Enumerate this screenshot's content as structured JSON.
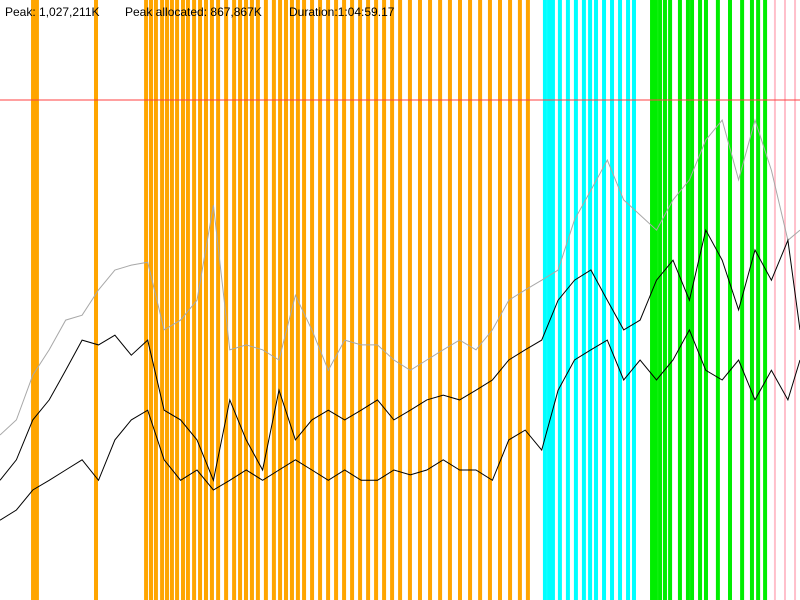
{
  "chart_data": {
    "type": "line",
    "peak": 1027211,
    "peak_label": "Peak: 1,027,211K",
    "peak_allocated": 867867,
    "peak_allocated_label": "Peak allocated: 867,867K",
    "duration_label": "Duration:1:04:59.17",
    "peak_color": "#ff4040",
    "xlim": [
      0,
      3899.17
    ],
    "ylim": [
      0,
      1232653
    ],
    "x": [
      0,
      80,
      160,
      240,
      320,
      400,
      480,
      560,
      640,
      720,
      800,
      880,
      960,
      1040,
      1120,
      1200,
      1280,
      1360,
      1440,
      1520,
      1600,
      1680,
      1760,
      1840,
      1920,
      2000,
      2080,
      2160,
      2240,
      2320,
      2400,
      2480,
      2560,
      2640,
      2720,
      2800,
      2880,
      2960,
      3040,
      3120,
      3200,
      3280,
      3360,
      3440,
      3520,
      3600,
      3680,
      3760,
      3840,
      3899.17
    ],
    "series": [
      {
        "color": "#a8a8a8",
        "values": [
          339000,
          370000,
          462000,
          514000,
          575000,
          585000,
          637000,
          678000,
          688000,
          694000,
          555000,
          575000,
          616000,
          811000,
          514000,
          524000,
          514000,
          493000,
          626000,
          555000,
          472000,
          534000,
          524000,
          524000,
          493000,
          472000,
          493000,
          514000,
          534000,
          514000,
          555000,
          616000,
          637000,
          657000,
          678000,
          781000,
          842000,
          904000,
          822000,
          791000,
          760000,
          822000,
          863000,
          945000,
          986000,
          863000,
          986000,
          883000,
          739000,
          760000
        ]
      },
      {
        "color": "#000000",
        "values": [
          246000,
          288000,
          370000,
          411000,
          472000,
          534000,
          524000,
          544000,
          503000,
          534000,
          390000,
          370000,
          329000,
          246000,
          411000,
          329000,
          267000,
          431000,
          329000,
          370000,
          390000,
          370000,
          390000,
          411000,
          370000,
          390000,
          411000,
          421000,
          411000,
          431000,
          452000,
          493000,
          514000,
          534000,
          616000,
          657000,
          678000,
          616000,
          555000,
          575000,
          657000,
          698000,
          616000,
          760000,
          698000,
          596000,
          719000,
          657000,
          739000,
          555000
        ]
      },
      {
        "color": "#000000",
        "values": [
          164000,
          185000,
          226000,
          246000,
          267000,
          288000,
          246000,
          329000,
          370000,
          390000,
          288000,
          246000,
          267000,
          226000,
          246000,
          267000,
          246000,
          267000,
          288000,
          267000,
          246000,
          267000,
          246000,
          246000,
          267000,
          257000,
          267000,
          288000,
          267000,
          267000,
          246000,
          329000,
          349000,
          308000,
          431000,
          493000,
          514000,
          534000,
          452000,
          493000,
          452000,
          493000,
          555000,
          472000,
          452000,
          493000,
          411000,
          472000,
          411000,
          493000
        ]
      }
    ],
    "events": [
      {
        "color": "#ffa500",
        "x": [
          161,
          180,
          468,
          712,
          736,
          760,
          790,
          814,
          838,
          863,
          892,
          916,
          946,
          975,
          1004,
          1033,
          1063,
          1102,
          1141,
          1170,
          1199,
          1228,
          1257,
          1296,
          1335,
          1365,
          1394,
          1423,
          1452,
          1482,
          1521,
          1560,
          1599,
          1638,
          1677,
          1716,
          1755,
          1794,
          1833,
          1872,
          1911,
          1950,
          1998,
          2047,
          2096,
          2145,
          2193,
          2242,
          2291,
          2340,
          2388,
          2437,
          2486,
          2534,
          2573
        ]
      },
      {
        "color": "#00ffff",
        "x": [
          2656,
          2676,
          2695,
          2729,
          2768,
          2807,
          2846,
          2876,
          2905,
          2944,
          2983,
          3022,
          3061,
          3090
        ]
      },
      {
        "color": "#00ee00",
        "x": [
          3178,
          3197,
          3217,
          3241,
          3266,
          3314,
          3353,
          3373,
          3412,
          3441,
          3499,
          3558,
          3617,
          3665,
          3695,
          3729
        ]
      },
      {
        "color": "#ffc0cb",
        "x": [
          3777,
          3826,
          3875
        ]
      }
    ]
  }
}
